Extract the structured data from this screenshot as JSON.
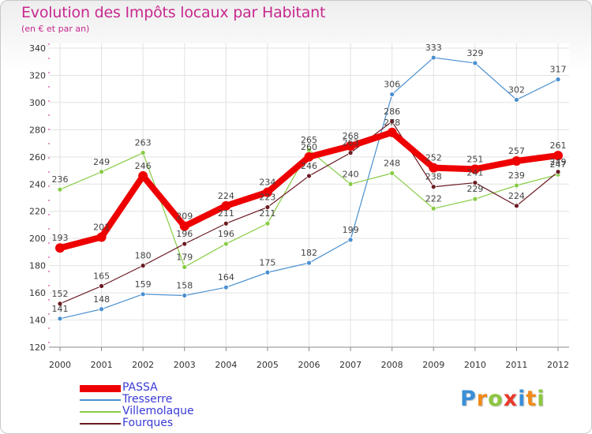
{
  "title": "Evolution des Impôts locaux par Habitant",
  "subtitle": "(en € et par an)",
  "chart_data": {
    "type": "line",
    "title": "Evolution des Impôts locaux par Habitant",
    "subtitle": "(en € et par an)",
    "x": [
      "2000",
      "2001",
      "2002",
      "2003",
      "2004",
      "2005",
      "2006",
      "2007",
      "2008",
      "2009",
      "2010",
      "2011",
      "2012"
    ],
    "ylim": [
      120,
      340
    ],
    "yticks": [
      120,
      140,
      160,
      180,
      200,
      220,
      240,
      260,
      280,
      300,
      320,
      340
    ],
    "grid": true,
    "legend_position": "bottom-left",
    "series": [
      {
        "name": "PASSA",
        "color": "#ee0000",
        "values": [
          193,
          201,
          246,
          209,
          224,
          234,
          260,
          268,
          278,
          252,
          251,
          257,
          261
        ]
      },
      {
        "name": "Tresserre",
        "color": "#4a8fd0",
        "values": [
          141,
          148,
          159,
          158,
          164,
          175,
          182,
          199,
          306,
          333,
          329,
          302,
          317
        ]
      },
      {
        "name": "Villemolaque",
        "color": "#88cc44",
        "values": [
          236,
          249,
          263,
          179,
          196,
          211,
          265,
          240,
          248,
          222,
          229,
          239,
          247
        ]
      },
      {
        "name": "Fourques",
        "color": "#6a1a22",
        "values": [
          152,
          165,
          180,
          196,
          211,
          223,
          246,
          263,
          286,
          238,
          241,
          224,
          249
        ]
      }
    ]
  },
  "logo": {
    "letters": [
      {
        "ch": "P",
        "color": "#3a8fd8"
      },
      {
        "ch": "r",
        "color": "#f08a1a"
      },
      {
        "ch": "o",
        "color": "#8cc63f"
      },
      {
        "ch": "x",
        "color": "#e8392a"
      },
      {
        "ch": "i",
        "color": "#3a8fd8"
      },
      {
        "ch": "t",
        "color": "#f08a1a"
      },
      {
        "ch": "i",
        "color": "#8cc63f"
      }
    ]
  }
}
